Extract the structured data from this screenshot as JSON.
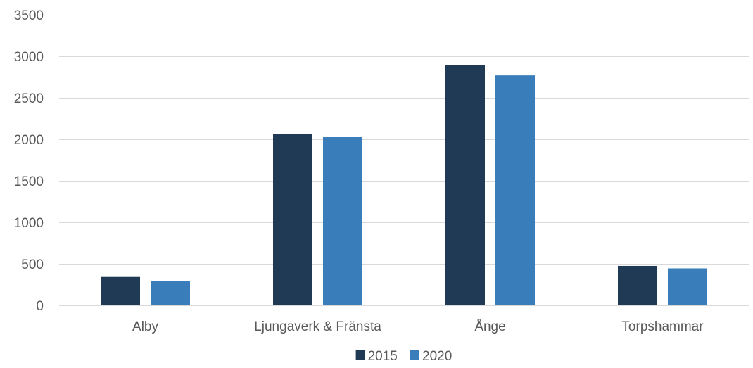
{
  "chart_data": {
    "type": "bar",
    "categories": [
      "Alby",
      "Ljungaverk & Fränsta",
      "Ånge",
      "Torpshammar"
    ],
    "series": [
      {
        "name": "2015",
        "values": [
          350,
          2065,
          2890,
          475
        ],
        "color": "#203a55"
      },
      {
        "name": "2020",
        "values": [
          290,
          2030,
          2770,
          445
        ],
        "color": "#3a7dbb"
      }
    ],
    "yticks": [
      0,
      500,
      1000,
      1500,
      2000,
      2500,
      3000,
      3500
    ],
    "ylim": [
      0,
      3500
    ],
    "grid": true,
    "legend_position": "bottom",
    "title": "",
    "xlabel": "",
    "ylabel": ""
  }
}
